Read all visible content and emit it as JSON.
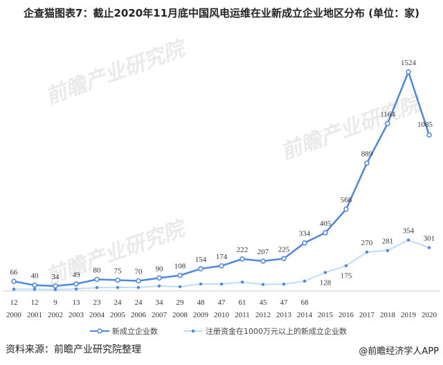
{
  "chart_data": {
    "type": "line",
    "title": "企查猫图表7：截止2020年11月底中国风电运维在业新成立企业地区分布 (单位：家)",
    "categories": [
      "2000",
      "2001",
      "2002",
      "2003",
      "2004",
      "2005",
      "2006",
      "2007",
      "2008",
      "2009",
      "2010",
      "2011",
      "2012",
      "2013",
      "2014",
      "2015",
      "2016",
      "2017",
      "2018",
      "2019",
      "2020"
    ],
    "series": [
      {
        "name": "新成立企业数",
        "color": "#4a86e8",
        "values": [
          66,
          40,
          34,
          49,
          80,
          75,
          70,
          90,
          108,
          154,
          174,
          222,
          207,
          225,
          334,
          405,
          568,
          889,
          1164,
          1524,
          1085
        ]
      },
      {
        "name": "注册资金在1000万元以上的新成立企业数",
        "color": "#bcdcf7",
        "values": [
          12,
          12,
          9,
          13,
          23,
          24,
          24,
          34,
          29,
          48,
          47,
          61,
          45,
          47,
          68,
          128,
          175,
          270,
          281,
          354,
          301
        ]
      }
    ],
    "ylim": [
      0,
      1524
    ],
    "legend": "bottom",
    "grid": false
  },
  "footer": {
    "source": "资料来源：前瞻产业研究院整理",
    "brand": "@前瞻经济学人APP"
  },
  "watermark": "前瞻产业研究院"
}
